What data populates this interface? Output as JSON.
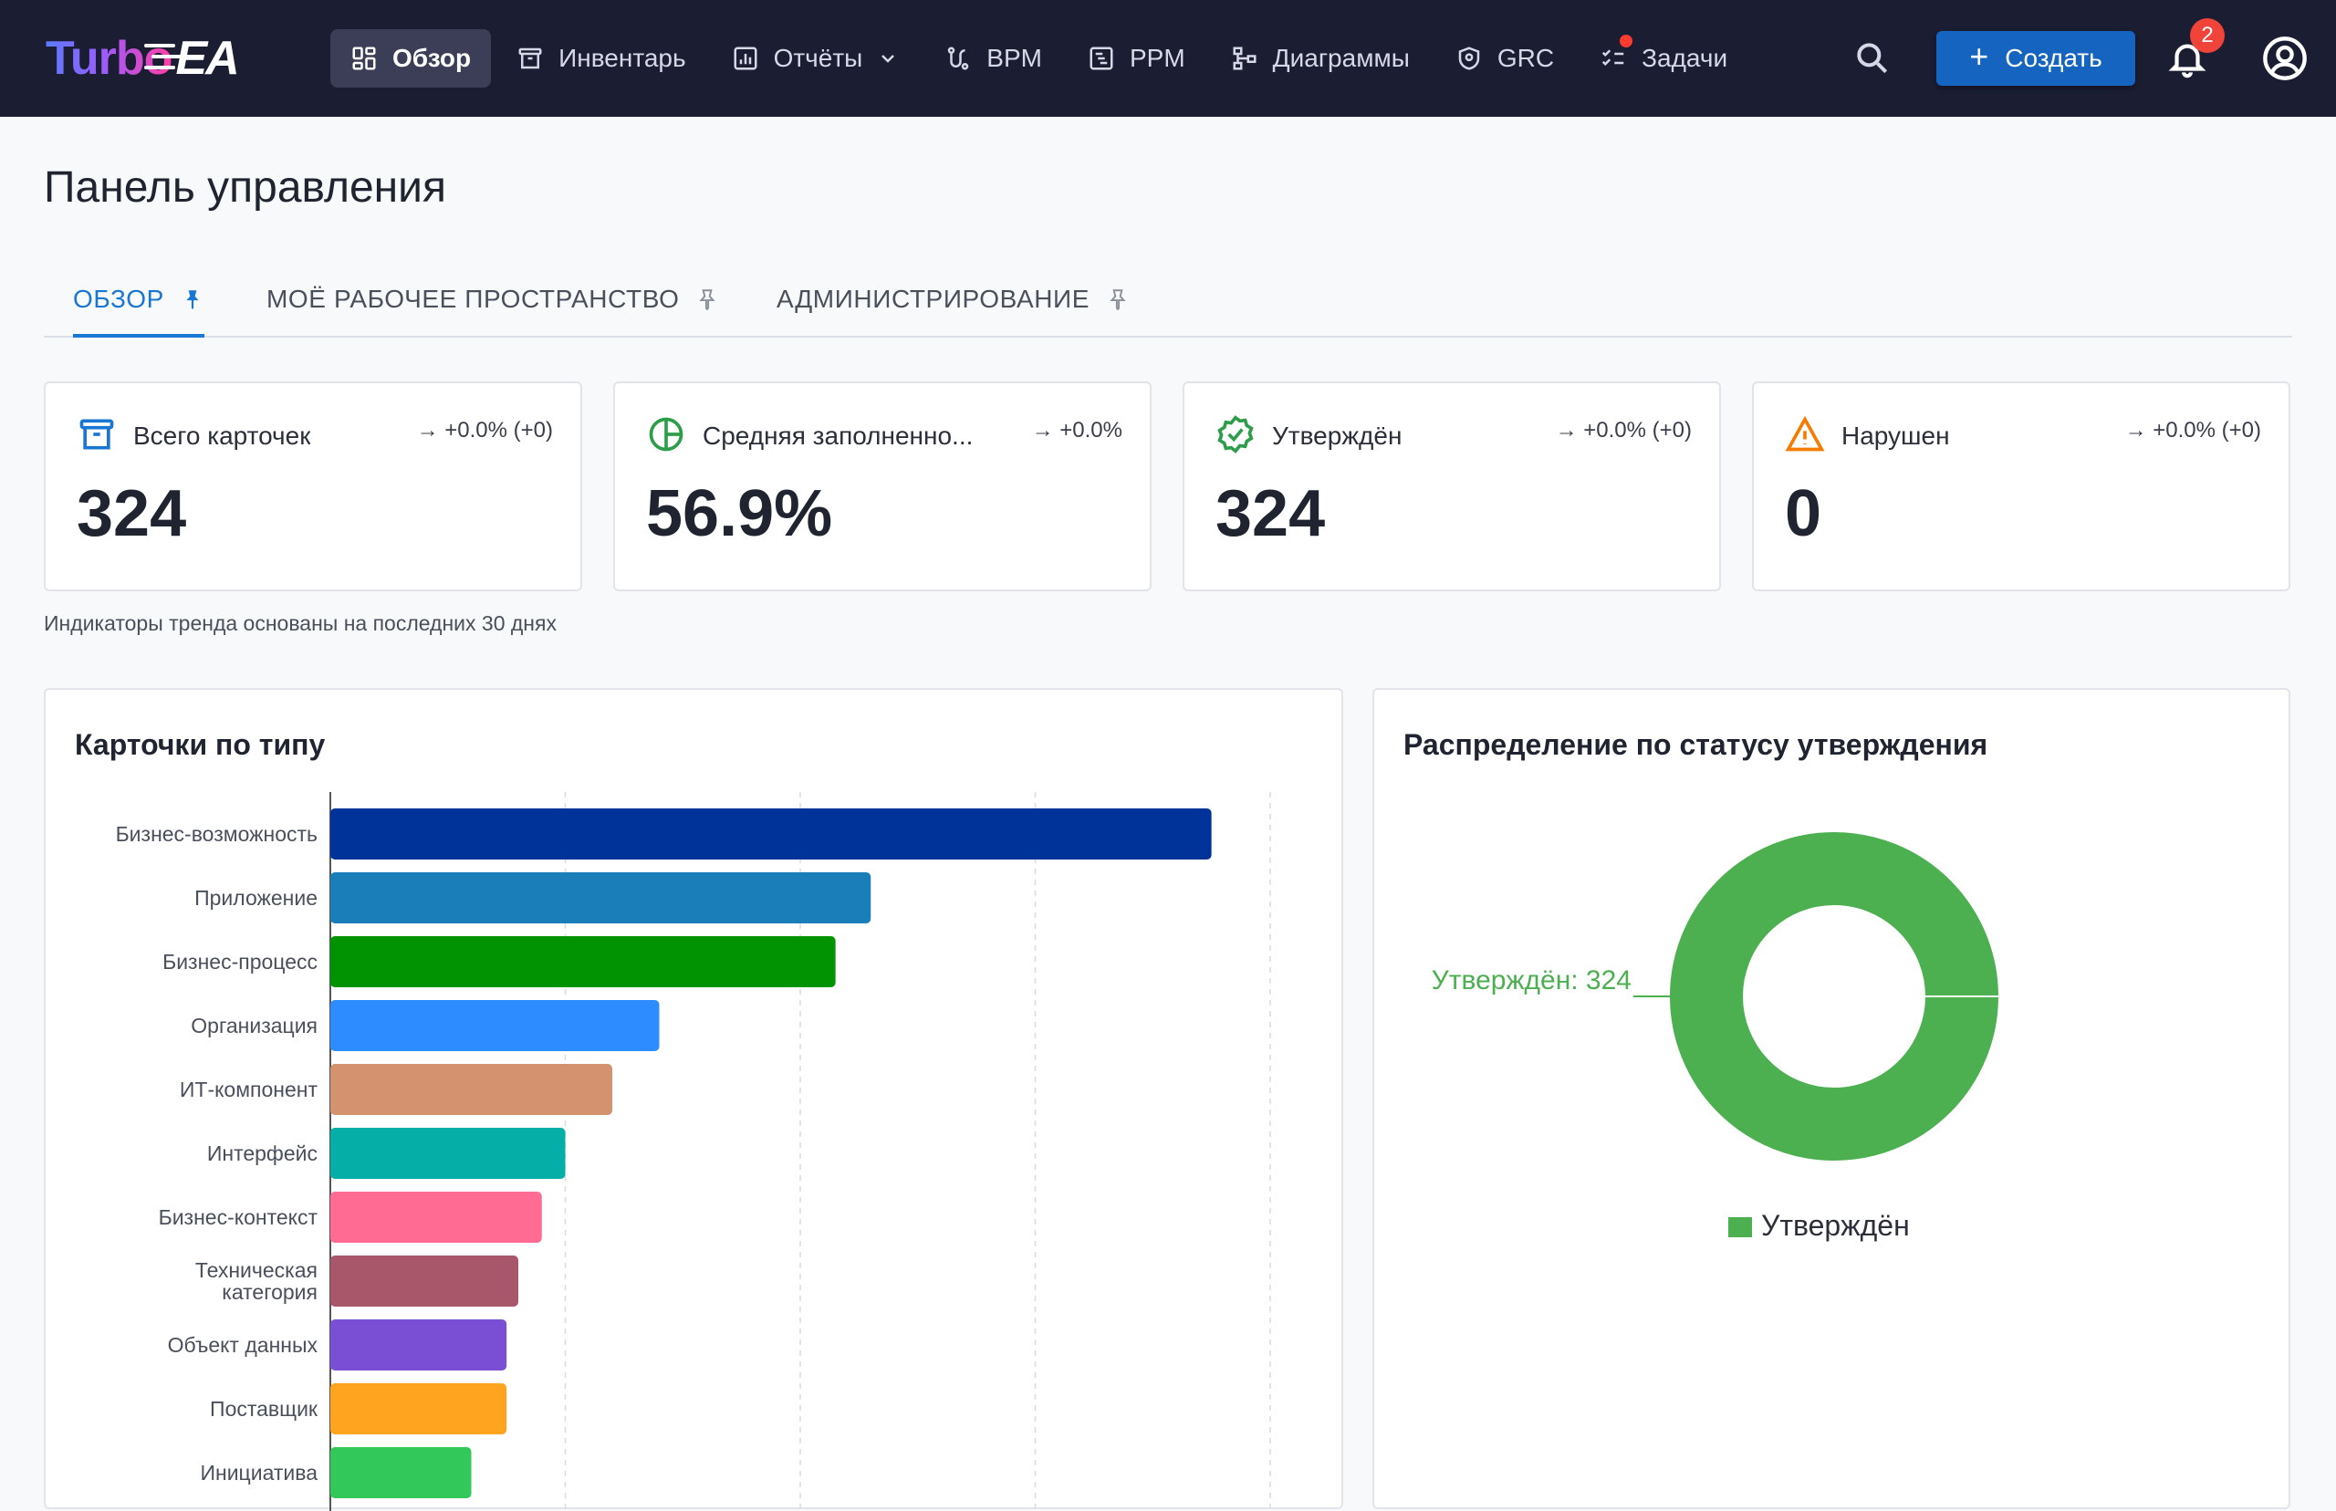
{
  "app": {
    "logo_turbo": "Turbo",
    "logo_ea": "EA"
  },
  "nav": {
    "items": [
      {
        "label": "Обзор",
        "icon": "dashboard-icon",
        "active": true
      },
      {
        "label": "Инвентарь",
        "icon": "archive-icon"
      },
      {
        "label": "Отчёты",
        "icon": "report-icon",
        "dropdown": true
      },
      {
        "label": "BPM",
        "icon": "route-icon"
      },
      {
        "label": "PPM",
        "icon": "gantt-icon"
      },
      {
        "label": "Диаграммы",
        "icon": "hierarchy-icon"
      },
      {
        "label": "GRC",
        "icon": "shield-icon"
      },
      {
        "label": "Задачи",
        "icon": "checklist-icon",
        "dot": true
      }
    ],
    "create_label": "Создать",
    "notifications_count": "2"
  },
  "page": {
    "title": "Панель управления",
    "tabs": [
      {
        "label": "Обзор",
        "active": true
      },
      {
        "label": "Моё рабочее пространство"
      },
      {
        "label": "Администрирование"
      }
    ]
  },
  "kpis": [
    {
      "label": "Всего карточек",
      "trend": "→ +0.0% (+0)",
      "value": "324",
      "icon": "archive-icon",
      "color": "#1976d2"
    },
    {
      "label": "Средняя заполненно...",
      "trend": "→ +0.0%",
      "value": "56.9%",
      "icon": "pie-icon",
      "color": "#2e9d4a"
    },
    {
      "label": "Утверждён",
      "trend": "→ +0.0% (+0)",
      "value": "324",
      "icon": "verified-icon",
      "color": "#2e9d4a"
    },
    {
      "label": "Нарушен",
      "trend": "→ +0.0% (+0)",
      "value": "0",
      "icon": "warning-icon",
      "color": "#f57c00"
    }
  ],
  "note": "Индикаторы тренда основаны на последних 30 днях",
  "chart_data": [
    {
      "type": "bar",
      "orientation": "horizontal",
      "title": "Карточки по типу",
      "categories": [
        "Бизнес-возможность",
        "Приложение",
        "Бизнес-процесс",
        "Организация",
        "ИТ-компонент",
        "Интерфейс",
        "Бизнес-контекст",
        "Техническая категория",
        "Объект данных",
        "Поставщик",
        "Инициатива"
      ],
      "values": [
        75,
        46,
        43,
        28,
        24,
        20,
        18,
        16,
        15,
        15,
        12
      ],
      "colors": [
        "#003399",
        "#1a7fb8",
        "#029302",
        "#2d8cff",
        "#d4926f",
        "#05aea6",
        "#ff6b93",
        "#a8576b",
        "#7b4fd4",
        "#ffa41f",
        "#33c85a"
      ],
      "xlim": [
        0,
        80
      ],
      "grid": true
    },
    {
      "type": "pie",
      "donut": true,
      "title": "Распределение по статусу утверждения",
      "slices": [
        {
          "name": "Утверждён",
          "value": 324,
          "color": "#4caf50"
        }
      ],
      "data_label": "Утверждён: 324",
      "legend": "bottom"
    }
  ]
}
